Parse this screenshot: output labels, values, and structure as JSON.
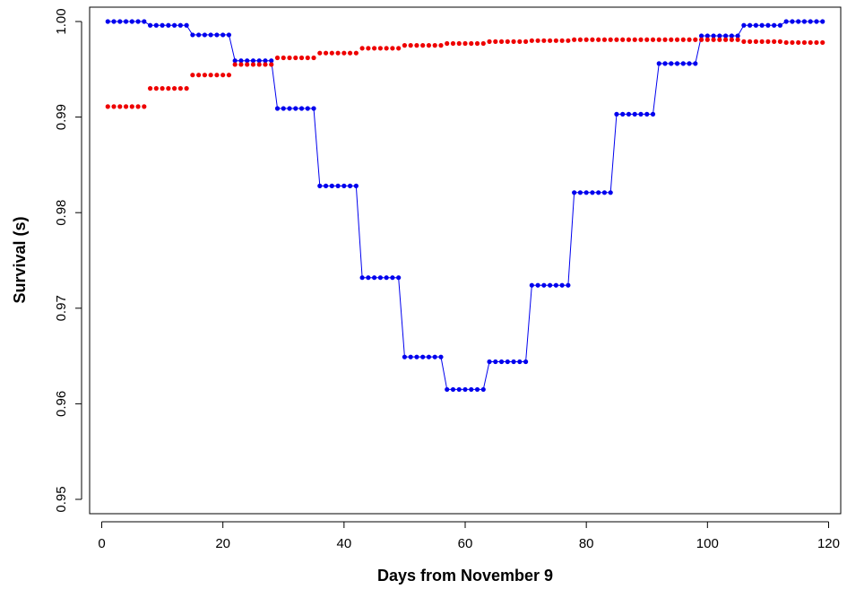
{
  "chart_data": {
    "type": "scatter",
    "title": "",
    "xlabel": "Days from November 9",
    "ylabel": "Survival (s)",
    "xlim": [
      -2,
      122
    ],
    "ylim": [
      0.9485,
      1.0015
    ],
    "xticks": [
      0,
      20,
      40,
      60,
      80,
      100,
      120
    ],
    "yticks": [
      0.95,
      0.96,
      0.97,
      0.98,
      0.99,
      1.0
    ],
    "ytick_labels": [
      "0.95",
      "0.96",
      "0.97",
      "0.98",
      "0.99",
      "1.00"
    ],
    "grid": false,
    "legend": "none",
    "series": [
      {
        "color": "#0000ee",
        "connect_steps": true,
        "steps": [
          {
            "x_start": 1,
            "x_end": 7,
            "y": 1.0
          },
          {
            "x_start": 8,
            "x_end": 14,
            "y": 0.9996
          },
          {
            "x_start": 15,
            "x_end": 21,
            "y": 0.9986
          },
          {
            "x_start": 22,
            "x_end": 28,
            "y": 0.9959
          },
          {
            "x_start": 29,
            "x_end": 35,
            "y": 0.9909
          },
          {
            "x_start": 36,
            "x_end": 42,
            "y": 0.9828
          },
          {
            "x_start": 43,
            "x_end": 49,
            "y": 0.9732
          },
          {
            "x_start": 50,
            "x_end": 56,
            "y": 0.9649
          },
          {
            "x_start": 57,
            "x_end": 63,
            "y": 0.9615
          },
          {
            "x_start": 64,
            "x_end": 70,
            "y": 0.9644
          },
          {
            "x_start": 71,
            "x_end": 77,
            "y": 0.9724
          },
          {
            "x_start": 78,
            "x_end": 84,
            "y": 0.9821
          },
          {
            "x_start": 85,
            "x_end": 91,
            "y": 0.9903
          },
          {
            "x_start": 92,
            "x_end": 98,
            "y": 0.9956
          },
          {
            "x_start": 99,
            "x_end": 105,
            "y": 0.9985
          },
          {
            "x_start": 106,
            "x_end": 112,
            "y": 0.9996
          },
          {
            "x_start": 113,
            "x_end": 119,
            "y": 1.0
          }
        ]
      },
      {
        "color": "#ee0000",
        "connect_steps": false,
        "steps": [
          {
            "x_start": 1,
            "x_end": 7,
            "y": 0.9911
          },
          {
            "x_start": 8,
            "x_end": 14,
            "y": 0.993
          },
          {
            "x_start": 15,
            "x_end": 21,
            "y": 0.9944
          },
          {
            "x_start": 22,
            "x_end": 28,
            "y": 0.9955
          },
          {
            "x_start": 29,
            "x_end": 35,
            "y": 0.9962
          },
          {
            "x_start": 36,
            "x_end": 42,
            "y": 0.9967
          },
          {
            "x_start": 43,
            "x_end": 49,
            "y": 0.9972
          },
          {
            "x_start": 50,
            "x_end": 56,
            "y": 0.9975
          },
          {
            "x_start": 57,
            "x_end": 63,
            "y": 0.9977
          },
          {
            "x_start": 64,
            "x_end": 70,
            "y": 0.9979
          },
          {
            "x_start": 71,
            "x_end": 77,
            "y": 0.998
          },
          {
            "x_start": 78,
            "x_end": 84,
            "y": 0.9981
          },
          {
            "x_start": 85,
            "x_end": 91,
            "y": 0.9981
          },
          {
            "x_start": 92,
            "x_end": 98,
            "y": 0.9981
          },
          {
            "x_start": 99,
            "x_end": 105,
            "y": 0.9981
          },
          {
            "x_start": 106,
            "x_end": 112,
            "y": 0.9979
          },
          {
            "x_start": 113,
            "x_end": 119,
            "y": 0.9978
          }
        ]
      }
    ]
  }
}
